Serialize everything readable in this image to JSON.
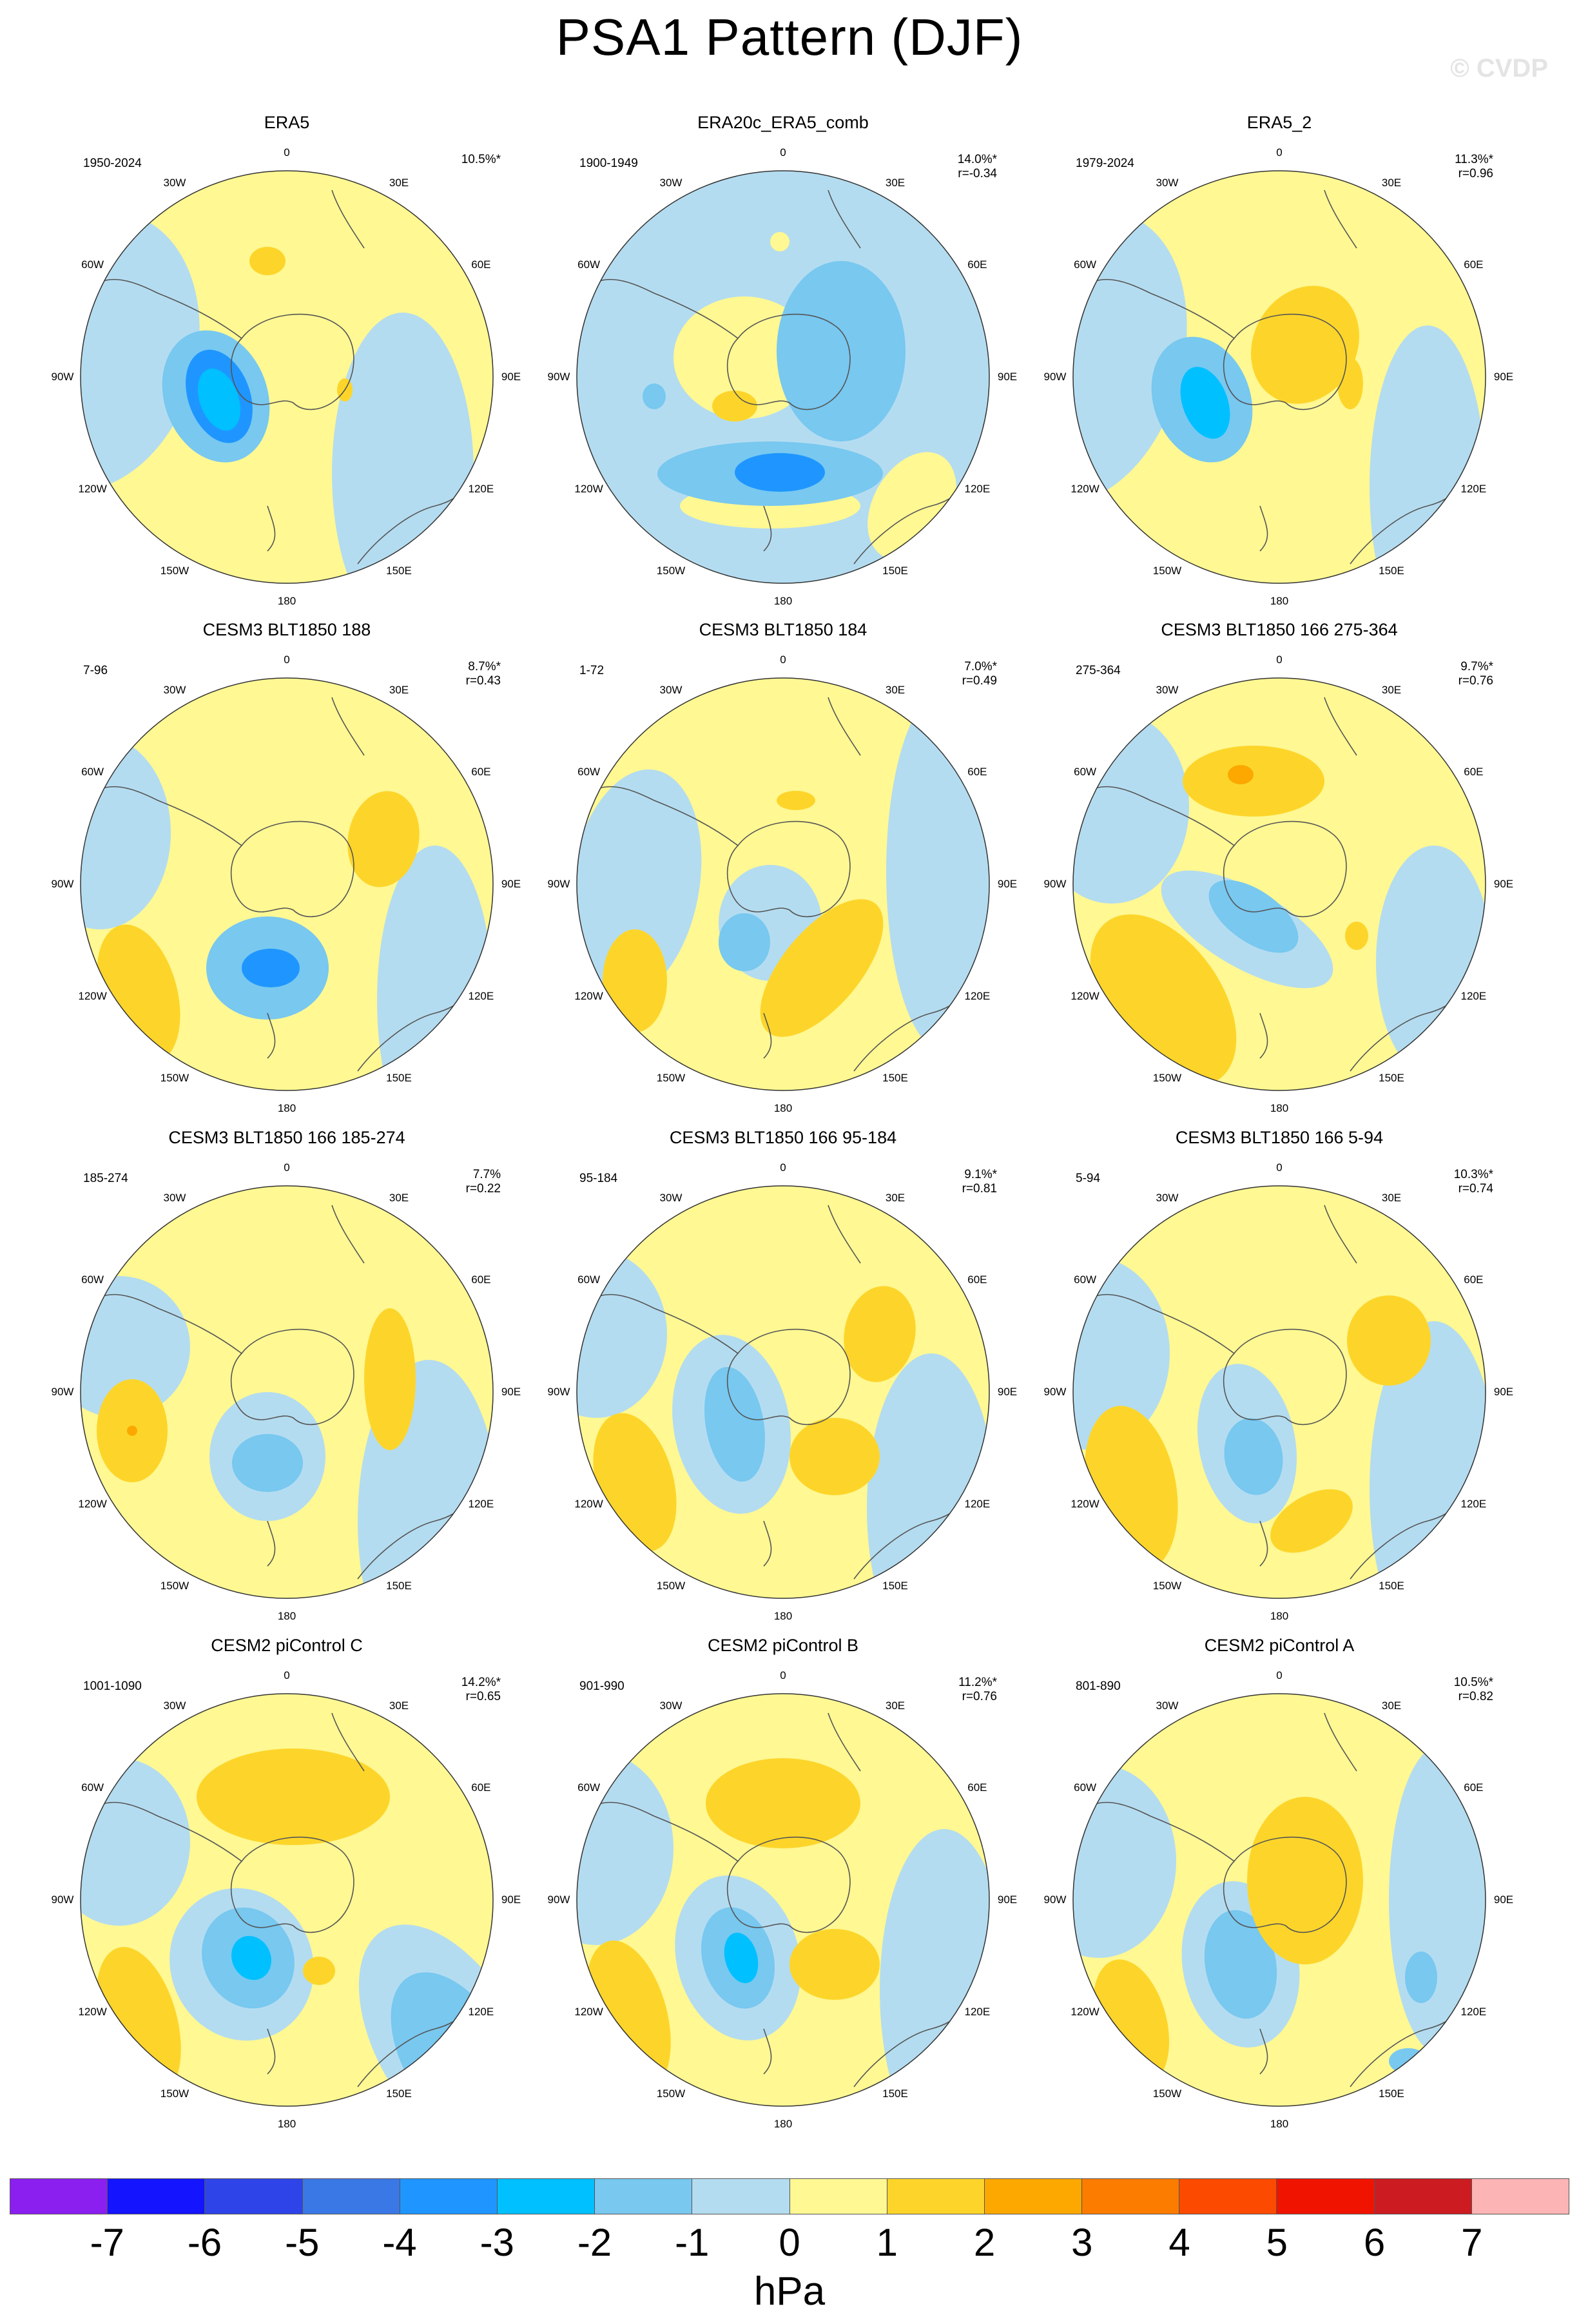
{
  "figure": {
    "title": "PSA1 Pattern (DJF)",
    "watermark": "© CVDP",
    "units": "hPa"
  },
  "colorbar": {
    "colors": [
      "#8b1ff0",
      "#1414ff",
      "#2f44e8",
      "#3a78e6",
      "#1f96ff",
      "#00c0ff",
      "#78c8f0",
      "#b4dcf0",
      "#fff893",
      "#fdd52a",
      "#fca800",
      "#fc7c00",
      "#fc4b00",
      "#f01400",
      "#cc1c22",
      "#fcb4b4"
    ],
    "labels": [
      "-7",
      "-6",
      "-5",
      "-4",
      "-3",
      "-2",
      "-1",
      "0",
      "1",
      "2",
      "3",
      "4",
      "5",
      "6",
      "7"
    ]
  },
  "longitude_labels": [
    "0",
    "30E",
    "60E",
    "90E",
    "120E",
    "150E",
    "180",
    "150W",
    "120W",
    "90W",
    "60W",
    "30W"
  ],
  "colors": {
    "yellow1": "#fff893",
    "orange2": "#fdd52a",
    "orange3": "#fca800",
    "blue1": "#b4dcf0",
    "blue2": "#78c8f0",
    "blue3": "#1f96ff",
    "blue4": "#00c0ff",
    "coast": "#555555"
  },
  "panels": [
    {
      "title": "ERA5",
      "period": "1950-2024",
      "pct": "10.5%*",
      "corr": "",
      "background": "yellow1",
      "features": [
        [
          "blue1",
          -300,
          -40,
          160,
          220,
          15
        ],
        [
          "blue1",
          180,
          150,
          110,
          250,
          0
        ],
        [
          "orange2",
          -30,
          -180,
          28,
          22,
          0
        ],
        [
          "orange2",
          90,
          20,
          12,
          18,
          0
        ],
        [
          "blue2",
          -110,
          30,
          80,
          105,
          -20
        ],
        [
          "blue3",
          -105,
          30,
          48,
          75,
          -20
        ],
        [
          "blue4",
          -105,
          35,
          30,
          50,
          -20
        ]
      ]
    },
    {
      "title": "ERA20c_ERA5_comb",
      "period": "1900-1949",
      "pct": "14.0%*",
      "corr": "r=-0.34",
      "background": "blue1",
      "features": [
        [
          "yellow1",
          -60,
          -30,
          110,
          95,
          0
        ],
        [
          "yellow1",
          200,
          200,
          60,
          90,
          30
        ],
        [
          "yellow1",
          -20,
          200,
          140,
          35,
          0
        ],
        [
          "blue2",
          90,
          -40,
          100,
          140,
          0
        ],
        [
          "blue2",
          -20,
          150,
          175,
          50,
          0
        ],
        [
          "blue3",
          -5,
          148,
          70,
          30,
          0
        ],
        [
          "orange2",
          -75,
          45,
          35,
          24,
          0
        ],
        [
          "blue2",
          -200,
          30,
          18,
          20,
          0
        ],
        [
          "yellow1",
          -5,
          -210,
          15,
          15,
          0
        ]
      ]
    },
    {
      "title": "ERA5_2",
      "period": "1979-2024",
      "pct": "11.3%*",
      "corr": "r=0.96",
      "background": "yellow1",
      "features": [
        [
          "blue1",
          230,
          170,
          90,
          250,
          0
        ],
        [
          "blue1",
          -300,
          -30,
          150,
          230,
          15
        ],
        [
          "orange2",
          40,
          -50,
          80,
          95,
          30
        ],
        [
          "orange2",
          110,
          10,
          20,
          40,
          0
        ],
        [
          "blue2",
          -120,
          35,
          75,
          100,
          -20
        ],
        [
          "blue4",
          -115,
          40,
          35,
          58,
          -20
        ]
      ]
    },
    {
      "title": "CESM3 BLT1850 188",
      "period": "7-96",
      "pct": "8.7%*",
      "corr": "r=0.43",
      "background": "yellow1",
      "features": [
        [
          "blue1",
          230,
          180,
          90,
          240,
          0
        ],
        [
          "blue1",
          -290,
          -80,
          110,
          150,
          0
        ],
        [
          "orange2",
          150,
          -70,
          55,
          75,
          10
        ],
        [
          "orange2",
          -230,
          170,
          60,
          110,
          -15
        ],
        [
          "blue2",
          -30,
          130,
          95,
          80,
          0
        ],
        [
          "blue3",
          -25,
          130,
          45,
          30,
          0
        ]
      ]
    },
    {
      "title": "CESM3 BLT1850 184",
      "period": "1-72",
      "pct": "7.0%*",
      "corr": "r=0.49",
      "background": "yellow1",
      "features": [
        [
          "blue1",
          250,
          -20,
          90,
          280,
          0
        ],
        [
          "blue1",
          -230,
          0,
          100,
          180,
          10
        ],
        [
          "blue1",
          -20,
          60,
          80,
          90,
          0
        ],
        [
          "blue2",
          -60,
          90,
          40,
          45,
          0
        ],
        [
          "orange2",
          -230,
          150,
          50,
          80,
          0
        ],
        [
          "orange2",
          60,
          130,
          60,
          130,
          40
        ],
        [
          "orange2",
          20,
          -130,
          30,
          15,
          0
        ]
      ]
    },
    {
      "title": "CESM3 BLT1850 166 275-364",
      "period": "275-364",
      "pct": "9.7%*",
      "corr": "r=0.76",
      "background": "yellow1",
      "features": [
        [
          "blue1",
          -260,
          -120,
          120,
          150,
          0
        ],
        [
          "blue1",
          240,
          120,
          90,
          180,
          0
        ],
        [
          "blue1",
          -50,
          70,
          150,
          60,
          30
        ],
        [
          "blue2",
          -40,
          50,
          80,
          40,
          35
        ],
        [
          "orange2",
          -40,
          -160,
          110,
          55,
          0
        ],
        [
          "orange3",
          -60,
          -170,
          20,
          15,
          0
        ],
        [
          "orange2",
          -180,
          180,
          90,
          150,
          -35
        ],
        [
          "orange2",
          120,
          80,
          18,
          22,
          0
        ]
      ]
    },
    {
      "title": "CESM3 BLT1850 166 185-274",
      "period": "185-274",
      "pct": "7.7%",
      "corr": "r=0.22",
      "background": "yellow1",
      "features": [
        [
          "blue1",
          -260,
          -70,
          110,
          110,
          0
        ],
        [
          "blue1",
          220,
          200,
          110,
          250,
          0
        ],
        [
          "blue1",
          -30,
          100,
          90,
          100,
          0
        ],
        [
          "blue2",
          -30,
          110,
          55,
          45,
          0
        ],
        [
          "orange2",
          -240,
          60,
          55,
          80,
          0
        ],
        [
          "orange3",
          -240,
          60,
          8,
          8,
          0
        ],
        [
          "orange2",
          160,
          -20,
          40,
          110,
          0
        ]
      ]
    },
    {
      "title": "CESM3 BLT1850 166 95-184",
      "period": "95-184",
      "pct": "9.1%*",
      "corr": "r=0.81",
      "background": "yellow1",
      "features": [
        [
          "blue1",
          230,
          180,
          100,
          240,
          0
        ],
        [
          "blue1",
          -290,
          -90,
          110,
          130,
          0
        ],
        [
          "blue1",
          -80,
          50,
          90,
          140,
          -10
        ],
        [
          "blue2",
          -75,
          50,
          45,
          90,
          -10
        ],
        [
          "orange2",
          150,
          -90,
          55,
          75,
          10
        ],
        [
          "orange2",
          -230,
          140,
          60,
          110,
          -15
        ],
        [
          "orange2",
          80,
          100,
          70,
          60,
          0
        ]
      ]
    },
    {
      "title": "CESM3 BLT1850 166 5-94",
      "period": "5-94",
      "pct": "10.3%*",
      "corr": "r=0.74",
      "background": "yellow1",
      "features": [
        [
          "blue1",
          240,
          150,
          100,
          260,
          0
        ],
        [
          "blue1",
          -290,
          -60,
          120,
          150,
          0
        ],
        [
          "blue1",
          -50,
          80,
          75,
          125,
          -10
        ],
        [
          "blue2",
          -40,
          100,
          45,
          60,
          -10
        ],
        [
          "orange2",
          170,
          -80,
          65,
          70,
          0
        ],
        [
          "orange2",
          -230,
          150,
          70,
          130,
          -10
        ],
        [
          "orange2",
          50,
          200,
          70,
          40,
          -30
        ]
      ]
    },
    {
      "title": "CESM2 piControl C",
      "period": "1001-1090",
      "pct": "14.2%*",
      "corr": "r=0.65",
      "background": "yellow1",
      "features": [
        [
          "blue1",
          250,
          220,
          110,
          200,
          -30
        ],
        [
          "blue2",
          260,
          240,
          80,
          140,
          -30
        ],
        [
          "blue1",
          -260,
          -90,
          110,
          130,
          0
        ],
        [
          "blue1",
          -70,
          100,
          110,
          120,
          -25
        ],
        [
          "blue2",
          -60,
          90,
          70,
          80,
          -25
        ],
        [
          "blue4",
          -55,
          90,
          30,
          35,
          -25
        ],
        [
          "orange2",
          10,
          -160,
          150,
          75,
          0
        ],
        [
          "orange2",
          -230,
          190,
          60,
          120,
          -15
        ],
        [
          "orange2",
          50,
          110,
          25,
          22,
          0
        ]
      ]
    },
    {
      "title": "CESM2 piControl B",
      "period": "901-990",
      "pct": "11.2%*",
      "corr": "r=0.76",
      "background": "yellow1",
      "features": [
        [
          "blue1",
          250,
          140,
          100,
          250,
          0
        ],
        [
          "blue1",
          -290,
          -80,
          120,
          150,
          0
        ],
        [
          "blue1",
          -70,
          90,
          95,
          130,
          -15
        ],
        [
          "blue2",
          -70,
          90,
          55,
          80,
          -15
        ],
        [
          "blue4",
          -65,
          90,
          25,
          40,
          -15
        ],
        [
          "orange2",
          0,
          -150,
          120,
          70,
          0
        ],
        [
          "orange2",
          -240,
          180,
          60,
          120,
          -15
        ],
        [
          "orange2",
          80,
          100,
          70,
          55,
          0
        ]
      ]
    },
    {
      "title": "CESM2 piControl A",
      "period": "801-890",
      "pct": "10.5%*",
      "corr": "r=0.82",
      "background": "yellow1",
      "features": [
        [
          "blue1",
          250,
          0,
          80,
          240,
          0
        ],
        [
          "blue1",
          -280,
          -60,
          120,
          150,
          0
        ],
        [
          "blue1",
          -60,
          100,
          90,
          130,
          -10
        ],
        [
          "blue2",
          -60,
          100,
          55,
          85,
          -10
        ],
        [
          "orange2",
          40,
          -30,
          90,
          130,
          0
        ],
        [
          "orange2",
          -230,
          190,
          55,
          100,
          -15
        ],
        [
          "blue2",
          220,
          120,
          25,
          40,
          0
        ],
        [
          "blue2",
          200,
          250,
          30,
          20,
          0
        ]
      ]
    }
  ]
}
